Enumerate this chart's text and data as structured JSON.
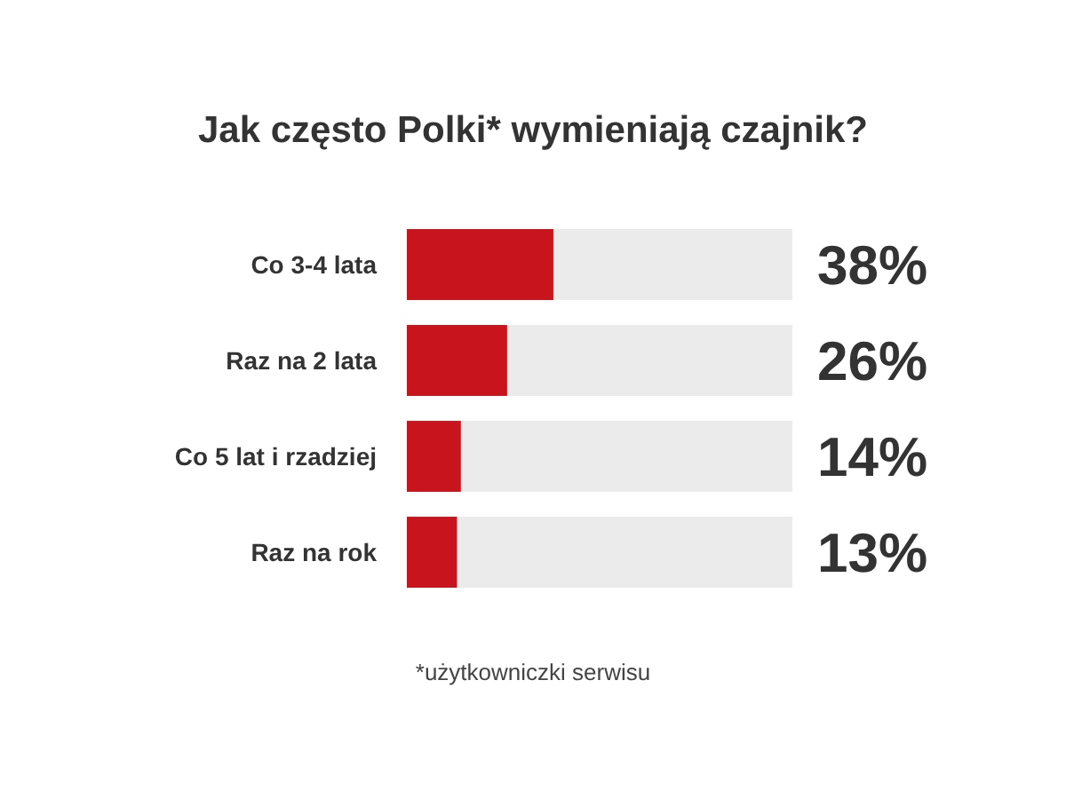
{
  "chart_data": {
    "type": "bar",
    "orientation": "horizontal",
    "title": "Jak często Polki* wymieniają czajnik?",
    "categories": [
      "Co 3-4 lata",
      "Raz na 2 lata",
      "Co 5 lat i rzadziej",
      "Raz na rok"
    ],
    "values": [
      38,
      26,
      14,
      13
    ],
    "color": "#c8141c",
    "value_labels": [
      "38%",
      "26%",
      "14%",
      "13%"
    ],
    "xlim": [
      0,
      100
    ],
    "tick_labels": "y",
    "annotations": [
      "*użytkowniczki serwisu"
    ]
  }
}
